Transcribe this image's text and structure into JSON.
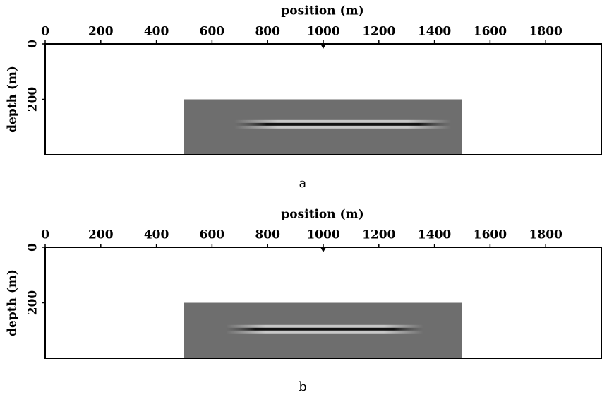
{
  "chart_data": [
    {
      "type": "image",
      "xlabel": "position (m)",
      "ylabel": "depth (m)",
      "caption": "a",
      "xlim": [
        0,
        2000
      ],
      "ylim": [
        0,
        400
      ],
      "xticks": [
        0,
        200,
        400,
        600,
        800,
        1000,
        1200,
        1400,
        1600,
        1800
      ],
      "yticks": [
        0,
        200
      ],
      "image_x": [
        500,
        1500
      ],
      "image_y": [
        200,
        400
      ],
      "image_color": "#6e6e6e",
      "reflector_x": [
        680,
        1460
      ],
      "reflector_depth": 290,
      "source_x": 1000,
      "source_depth": 0
    },
    {
      "type": "image",
      "xlabel": "position (m)",
      "ylabel": "depth (m)",
      "caption": "b",
      "xlim": [
        0,
        2000
      ],
      "ylim": [
        0,
        400
      ],
      "xticks": [
        0,
        200,
        400,
        600,
        800,
        1000,
        1200,
        1400,
        1600,
        1800
      ],
      "yticks": [
        0,
        200
      ],
      "image_x": [
        500,
        1500
      ],
      "image_y": [
        200,
        400
      ],
      "image_color": "#6e6e6e",
      "reflector_x": [
        650,
        1360
      ],
      "reflector_depth": 295,
      "source_x": 1000,
      "source_depth": 0
    }
  ]
}
